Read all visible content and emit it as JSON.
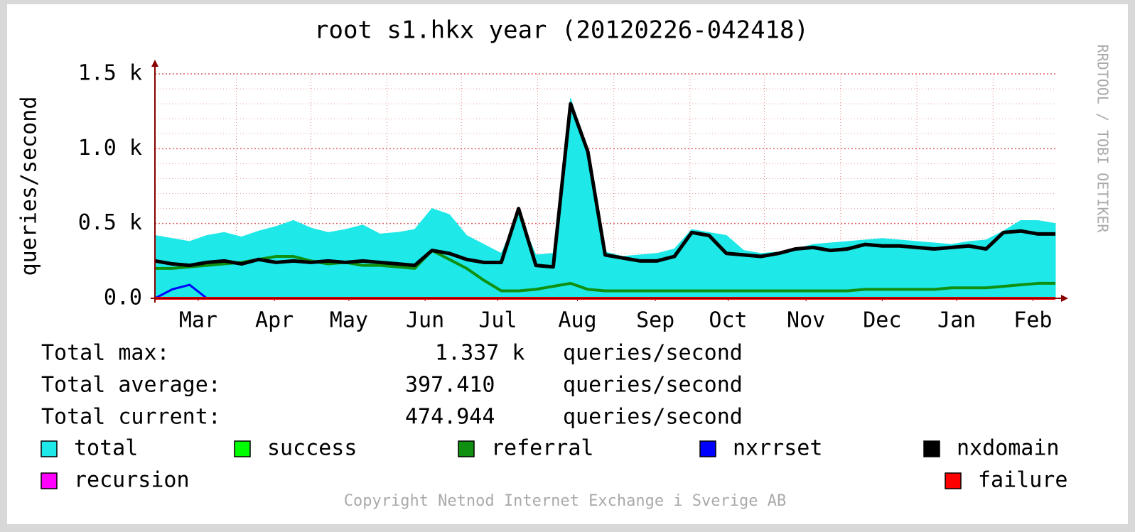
{
  "chart_data": {
    "type": "area",
    "title": "root s1.hkx year (20120226-042418)",
    "y_label": "queries/second",
    "side_text": "RRDTOOL / TOBI OETIKER",
    "footer": "Copyright Netnod Internet Exchange i Sverige AB",
    "grid": true,
    "ylim": [
      0,
      1500
    ],
    "yticks": [
      {
        "value": 0,
        "label": "0.0"
      },
      {
        "value": 500,
        "label": "0.5 k"
      },
      {
        "value": 1000,
        "label": "1.0 k"
      },
      {
        "value": 1500,
        "label": "1.5 k"
      }
    ],
    "y_minor_ticks": [
      100,
      200,
      300,
      400,
      600,
      700,
      800,
      900,
      1100,
      1200,
      1300,
      1400
    ],
    "xlim": [
      0,
      52
    ],
    "xticks": [
      {
        "value": 2.5,
        "label": "Mar"
      },
      {
        "value": 6.9,
        "label": "Apr"
      },
      {
        "value": 11.2,
        "label": "May"
      },
      {
        "value": 15.6,
        "label": "Jun"
      },
      {
        "value": 19.8,
        "label": "Jul"
      },
      {
        "value": 24.4,
        "label": "Aug"
      },
      {
        "value": 28.9,
        "label": "Sep"
      },
      {
        "value": 33.1,
        "label": "Oct"
      },
      {
        "value": 37.6,
        "label": "Nov"
      },
      {
        "value": 42,
        "label": "Dec"
      },
      {
        "value": 46.3,
        "label": "Jan"
      },
      {
        "value": 50.7,
        "label": "Feb"
      }
    ],
    "x_grid": [
      4.7,
      9.0,
      13.4,
      17.7,
      22.1,
      26.5,
      30.9,
      35.2,
      39.6,
      44.0,
      48.4
    ],
    "x": [
      0,
      1,
      2,
      3,
      4,
      5,
      6,
      7,
      8,
      9,
      10,
      11,
      12,
      13,
      14,
      15,
      16,
      17,
      18,
      19,
      20,
      21,
      22,
      23,
      24,
      25,
      26,
      27,
      28,
      29,
      30,
      31,
      32,
      33,
      34,
      35,
      36,
      37,
      38,
      39,
      40,
      41,
      42,
      43,
      44,
      45,
      46,
      47,
      48,
      49,
      50,
      51,
      52
    ],
    "series": [
      {
        "name": "total",
        "color": "#1ee8e8",
        "values": [
          420,
          400,
          380,
          420,
          440,
          410,
          450,
          480,
          520,
          470,
          440,
          460,
          490,
          430,
          440,
          460,
          600,
          560,
          420,
          360,
          300,
          560,
          290,
          300,
          1337,
          980,
          310,
          280,
          290,
          300,
          330,
          460,
          440,
          420,
          320,
          300,
          310,
          330,
          360,
          370,
          380,
          390,
          400,
          390,
          380,
          370,
          360,
          380,
          390,
          450,
          520,
          520,
          500
        ]
      },
      {
        "name": "success",
        "color": "#00ff00",
        "values": [
          0,
          0,
          0,
          0,
          0,
          0,
          0,
          0,
          0,
          0,
          0,
          0,
          0,
          0,
          0,
          0,
          0,
          0,
          0,
          0,
          0,
          0,
          0,
          0,
          0,
          0,
          0,
          0,
          0,
          0,
          0,
          0,
          0,
          0,
          0,
          0,
          0,
          0,
          0,
          0,
          0,
          0,
          0,
          0,
          0,
          0,
          0,
          0,
          0,
          0,
          0,
          0,
          0
        ]
      },
      {
        "name": "referral",
        "color": "#109010",
        "values": [
          200,
          200,
          210,
          220,
          230,
          240,
          260,
          280,
          280,
          250,
          230,
          240,
          220,
          220,
          210,
          200,
          320,
          260,
          200,
          120,
          50,
          50,
          60,
          80,
          100,
          60,
          50,
          50,
          50,
          50,
          50,
          50,
          50,
          50,
          50,
          50,
          50,
          50,
          50,
          50,
          50,
          60,
          60,
          60,
          60,
          60,
          70,
          70,
          70,
          80,
          90,
          100,
          100
        ]
      },
      {
        "name": "nxrrset",
        "color": "#0000ff",
        "values": [
          0,
          60,
          90,
          0,
          0,
          0,
          0,
          0,
          0,
          0,
          0,
          0,
          0,
          0,
          0,
          0,
          0,
          0,
          0,
          0,
          0,
          0,
          0,
          0,
          0,
          0,
          0,
          0,
          0,
          0,
          0,
          0,
          0,
          0,
          0,
          0,
          0,
          0,
          0,
          0,
          0,
          0,
          0,
          0,
          0,
          0,
          0,
          0,
          0,
          0,
          0,
          0,
          0
        ]
      },
      {
        "name": "nxdomain",
        "color": "#000000",
        "values": [
          250,
          230,
          220,
          240,
          250,
          230,
          260,
          240,
          250,
          240,
          250,
          240,
          250,
          240,
          230,
          220,
          320,
          300,
          260,
          240,
          240,
          600,
          220,
          210,
          1300,
          980,
          290,
          270,
          250,
          250,
          280,
          440,
          420,
          300,
          290,
          280,
          300,
          330,
          340,
          320,
          330,
          360,
          350,
          350,
          340,
          330,
          340,
          350,
          330,
          440,
          450,
          430,
          430
        ]
      },
      {
        "name": "recursion",
        "color": "#ff00ff",
        "values": [
          0,
          0,
          0,
          0,
          0,
          0,
          0,
          0,
          0,
          0,
          0,
          0,
          0,
          0,
          0,
          0,
          0,
          0,
          0,
          0,
          0,
          0,
          0,
          0,
          0,
          0,
          0,
          0,
          0,
          0,
          0,
          0,
          0,
          0,
          0,
          0,
          0,
          0,
          0,
          0,
          0,
          0,
          0,
          0,
          0,
          0,
          0,
          0,
          0,
          0,
          0,
          0,
          0
        ]
      },
      {
        "name": "failure",
        "color": "#ff0000",
        "values": [
          0,
          0,
          0,
          0,
          0,
          0,
          0,
          0,
          0,
          0,
          0,
          0,
          0,
          0,
          0,
          0,
          0,
          0,
          0,
          0,
          0,
          0,
          0,
          0,
          0,
          0,
          0,
          0,
          0,
          0,
          0,
          0,
          0,
          0,
          0,
          0,
          0,
          0,
          0,
          0,
          0,
          0,
          0,
          0,
          0,
          0,
          0,
          0,
          0,
          0,
          0,
          0,
          0
        ]
      }
    ],
    "stats": [
      {
        "label": "Total max:",
        "value": "1.337 k",
        "unit": "queries/second"
      },
      {
        "label": "Total average:",
        "value": "397.410",
        "unit": "queries/second"
      },
      {
        "label": "Total current:",
        "value": "474.944",
        "unit": "queries/second"
      }
    ]
  }
}
